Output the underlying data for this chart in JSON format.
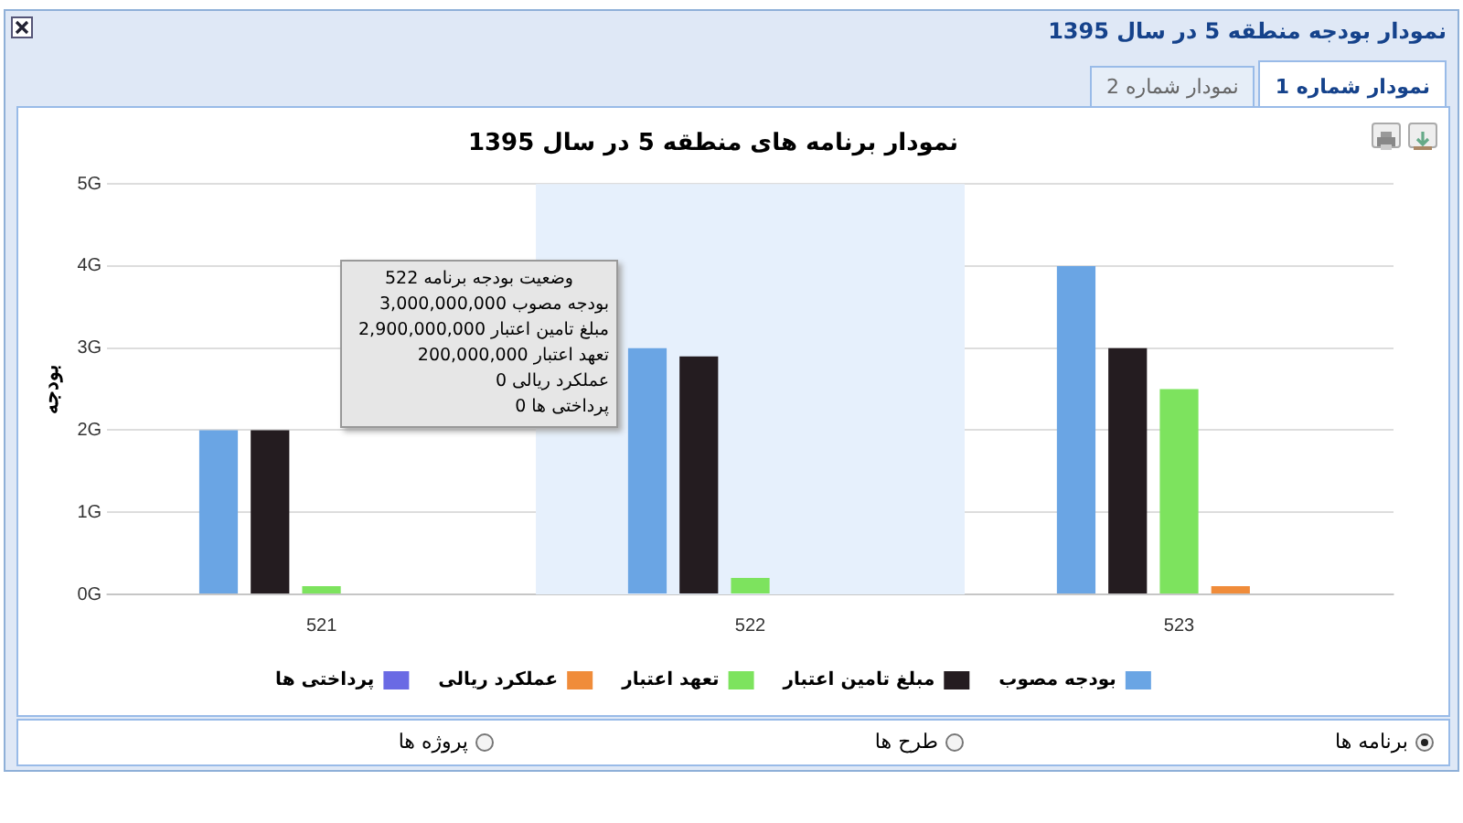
{
  "chart_data": {
    "type": "bar",
    "title": "نمودار برنامه های منطقه 5 در سال 1395",
    "ylabel": "بودجه",
    "categories": [
      "521",
      "522",
      "523"
    ],
    "series": [
      {
        "name": "بودجه مصوب",
        "color": "#6aa5e4",
        "values": [
          2,
          3,
          4
        ]
      },
      {
        "name": "مبلغ تامین اعتبار",
        "color": "#241c20",
        "values": [
          2,
          2.9,
          3
        ]
      },
      {
        "name": "تعهد اعتبار",
        "color": "#7de35e",
        "values": [
          0.1,
          0.2,
          2.5
        ]
      },
      {
        "name": "عملکرد ریالی",
        "color": "#f08c3a",
        "values": [
          0,
          0,
          0.1
        ]
      },
      {
        "name": "پرداختی ها",
        "color": "#6a6ae4",
        "values": [
          0,
          0,
          0
        ]
      }
    ],
    "ylim": [
      0,
      5
    ],
    "yticks": [
      {
        "value": 0,
        "label": "0G"
      },
      {
        "value": 1,
        "label": "1G"
      },
      {
        "value": 2,
        "label": "2G"
      },
      {
        "value": 3,
        "label": "3G"
      },
      {
        "value": 4,
        "label": "4G"
      },
      {
        "value": 5,
        "label": "5G"
      }
    ],
    "bands": [
      {
        "axis": "x",
        "from": "522",
        "to": "522",
        "color": "#e6f0fc"
      }
    ],
    "grid": "y",
    "legend": "bottom",
    "annotations": [
      "نمودار بودجه منطقه 5 در سال 1395",
      "نمودار شماره 1",
      "نمودار شماره 2",
      "برنامه ها",
      "طرح ها",
      "پروژه ها",
      "وضعیت بودجه برنامه 522",
      "بودجه مصوب 3,000,000,000",
      "مبلغ تامین اعتبار 2,900,000,000",
      "تعهد اعتبار 200,000,000",
      "عملکرد ریالی 0",
      "پرداختی ها 0"
    ]
  }
}
